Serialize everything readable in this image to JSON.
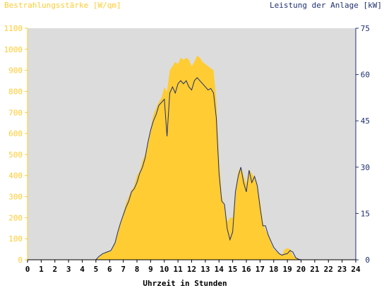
{
  "colors": {
    "background": "#ffffff",
    "plot_background": "#dcdcdc",
    "irradiance": "#ffcc33",
    "power": "#1f3070",
    "left_axis": "#ffcc33",
    "right_axis": "#1f3070",
    "bottom_axis": "#000000"
  },
  "chart_data": {
    "type": "area",
    "left_title": "Bestrahlungsstärke [W/qm]",
    "right_title": "Leistung der Anlage [kW]",
    "xlabel": "Uhrzeit in Stunden",
    "x_ticks": [
      "0",
      "1",
      "2",
      "3",
      "4",
      "5",
      "6",
      "7",
      "8",
      "9",
      "10",
      "11",
      "12",
      "13",
      "14",
      "15",
      "16",
      "17",
      "18",
      "19",
      "20",
      "21",
      "22",
      "23",
      "24"
    ],
    "y_left_ticks": [
      "0",
      "100",
      "200",
      "300",
      "400",
      "500",
      "600",
      "700",
      "800",
      "900",
      "1000",
      "1100"
    ],
    "y_right_ticks": [
      "0",
      "15",
      "30",
      "45",
      "60",
      "75"
    ],
    "xlim": [
      0,
      24
    ],
    "ylim_left": [
      0,
      1100
    ],
    "ylim_right": [
      0,
      75
    ],
    "series": [
      {
        "name": "Bestrahlungsstärke [W/qm]",
        "axis": "left",
        "style": "area",
        "x": [
          0,
          5,
          5.2,
          5.5,
          5.8,
          6.1,
          6.4,
          6.6,
          6.8,
          7,
          7.2,
          7.4,
          7.6,
          7.8,
          8,
          8.2,
          8.4,
          8.6,
          8.8,
          9,
          9.2,
          9.4,
          9.6,
          9.8,
          10,
          10.2,
          10.4,
          10.6,
          10.8,
          11,
          11.2,
          11.4,
          11.6,
          11.8,
          12,
          12.2,
          12.4,
          12.6,
          12.8,
          13,
          13.2,
          13.4,
          13.6,
          13.8,
          14,
          14.2,
          14.4,
          14.6,
          14.8,
          15,
          15.2,
          15.4,
          15.6,
          15.8,
          16,
          16.2,
          16.4,
          16.6,
          16.8,
          17,
          17.2,
          17.4,
          17.6,
          17.8,
          18,
          18.2,
          18.4,
          18.6,
          18.8,
          19,
          19.2,
          19.4,
          19.6,
          19.8,
          20,
          24
        ],
        "y": [
          0,
          0,
          10,
          30,
          40,
          40,
          80,
          130,
          180,
          220,
          270,
          300,
          330,
          350,
          400,
          420,
          470,
          500,
          560,
          620,
          690,
          720,
          750,
          770,
          820,
          800,
          900,
          920,
          940,
          930,
          960,
          950,
          960,
          950,
          920,
          940,
          970,
          960,
          940,
          930,
          920,
          910,
          900,
          760,
          480,
          300,
          250,
          180,
          200,
          200,
          320,
          420,
          440,
          400,
          360,
          430,
          410,
          390,
          350,
          280,
          180,
          140,
          120,
          80,
          50,
          40,
          30,
          20,
          50,
          55,
          50,
          20,
          10,
          5,
          0,
          0
        ]
      },
      {
        "name": "Leistung der Anlage [kW]",
        "axis": "right",
        "style": "line",
        "x": [
          0,
          5,
          5.2,
          5.5,
          5.8,
          6.1,
          6.4,
          6.6,
          6.8,
          7,
          7.2,
          7.4,
          7.6,
          7.8,
          8,
          8.2,
          8.4,
          8.6,
          8.8,
          9,
          9.2,
          9.4,
          9.6,
          9.8,
          10,
          10.2,
          10.4,
          10.6,
          10.8,
          11,
          11.2,
          11.4,
          11.6,
          11.8,
          12,
          12.2,
          12.4,
          12.6,
          12.8,
          13,
          13.2,
          13.4,
          13.6,
          13.8,
          14,
          14.2,
          14.4,
          14.6,
          14.8,
          15,
          15.2,
          15.4,
          15.6,
          15.8,
          16,
          16.2,
          16.4,
          16.6,
          16.8,
          17,
          17.2,
          17.4,
          17.6,
          17.8,
          18,
          18.2,
          18.4,
          18.6,
          18.8,
          19,
          19.2,
          19.4,
          19.6,
          19.8,
          20,
          24
        ],
        "y": [
          0,
          0,
          1,
          2,
          2.5,
          3,
          5.5,
          9,
          12,
          14.5,
          17,
          19,
          22,
          23,
          25,
          28,
          30,
          33,
          38,
          42,
          45,
          47,
          50,
          51,
          52,
          40,
          54,
          56,
          54,
          57,
          58,
          57,
          58,
          56,
          55,
          58,
          59,
          58,
          57,
          56,
          55,
          55.5,
          54,
          46,
          28,
          19,
          18,
          10,
          6.5,
          9,
          22,
          27,
          30,
          25,
          22,
          29,
          25,
          27,
          24,
          17,
          11,
          11,
          8,
          6,
          4,
          3,
          2,
          1.5,
          1.8,
          2,
          3,
          2.5,
          0.7,
          0.2,
          0,
          0
        ]
      }
    ]
  }
}
